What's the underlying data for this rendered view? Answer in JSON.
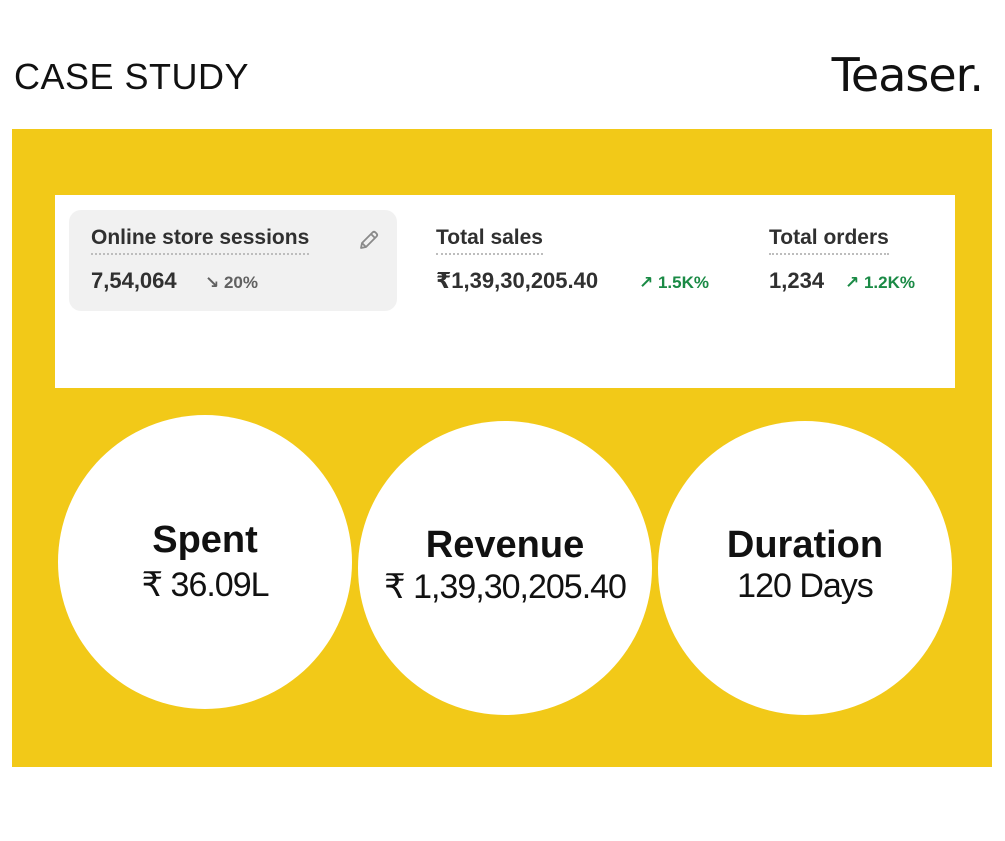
{
  "header": {
    "title": "CASE STUDY",
    "brand": "Teaser."
  },
  "colors": {
    "panel_background": "#f2c918",
    "positive_change": "#1a8a45",
    "negative_change": "#616161"
  },
  "metrics": [
    {
      "label": "Online store sessions",
      "value": "7,54,064",
      "change": "↘ 20%",
      "direction": "down",
      "icon": "pencil-icon"
    },
    {
      "label": "Total sales",
      "value": "₹1,39,30,205.40",
      "change": "↗ 1.5K%",
      "direction": "up"
    },
    {
      "label": "Total orders",
      "value": "1,234",
      "change": "↗ 1.2K%",
      "direction": "up"
    }
  ],
  "highlights": {
    "spent": {
      "title": "Spent",
      "value": "₹ 36.09L"
    },
    "revenue": {
      "title": "Revenue",
      "value": "₹ 1,39,30,205.40"
    },
    "duration": {
      "title": "Duration",
      "value": "120 Days"
    }
  }
}
